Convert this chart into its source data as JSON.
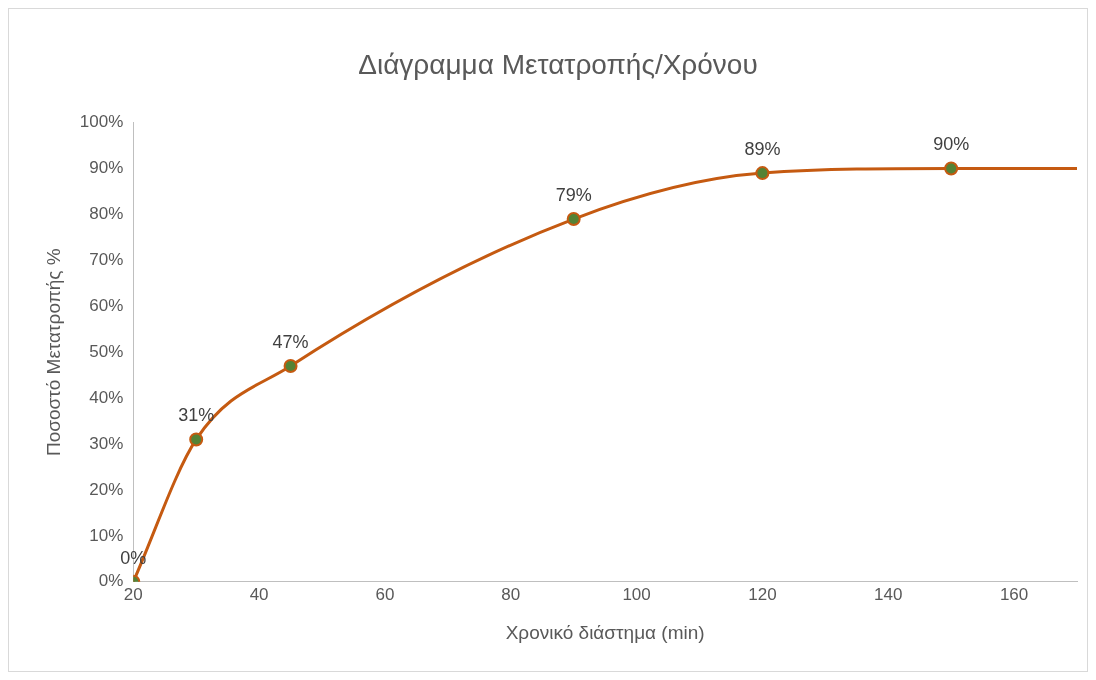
{
  "chart_data": {
    "type": "line",
    "title": "Διάγραμμα Μετατροπής/Χρόνου",
    "xlabel": "Χρονικό διάστημα (min)",
    "ylabel": "Ποσοστό Μετατροπής %",
    "x": [
      20,
      30,
      45,
      90,
      120,
      150,
      170
    ],
    "series": [
      {
        "color": "#c55a11",
        "colors": [
          "#548235",
          "#548235",
          "#548235",
          "#548235",
          "#548235",
          "#548235",
          null
        ],
        "values": [
          0,
          31,
          47,
          79,
          89,
          90,
          90
        ],
        "value_labels": [
          "0%",
          "31%",
          "47%",
          "79%",
          "89%",
          "90%",
          null
        ]
      }
    ],
    "xlim": [
      20,
      170
    ],
    "xticks": [
      20,
      40,
      60,
      80,
      100,
      120,
      140,
      160
    ],
    "ylim": [
      0,
      100
    ],
    "yticks": [
      {
        "value": 0,
        "label": "0%"
      },
      {
        "value": 10,
        "label": "10%"
      },
      {
        "value": 20,
        "label": "20%"
      },
      {
        "value": 30,
        "label": "30%"
      },
      {
        "value": 40,
        "label": "40%"
      },
      {
        "value": 50,
        "label": "50%"
      },
      {
        "value": 60,
        "label": "60%"
      },
      {
        "value": 70,
        "label": "70%"
      },
      {
        "value": 80,
        "label": "80%"
      },
      {
        "value": 90,
        "label": "90%"
      },
      {
        "value": 100,
        "label": "100%"
      }
    ],
    "grid": false,
    "legend": false,
    "marker": "circle",
    "line_style": "solid"
  }
}
